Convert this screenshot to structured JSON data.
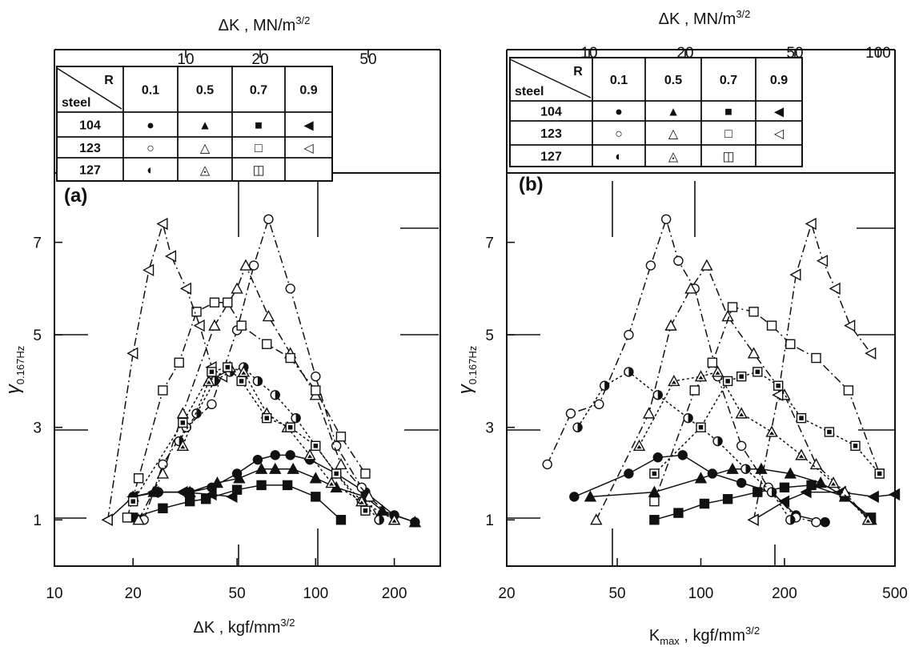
{
  "chart_data": [
    {
      "panel": "(a)",
      "type": "line",
      "xlabel": "ΔK , kgf/mm",
      "xlabel_sup": "3/2",
      "top_xlabel": "ΔK , MN/m",
      "top_xlabel_sup": "3/2",
      "ylabel": "γ",
      "ylabel_sub": "0.167Hz",
      "xscale": "log",
      "xlim": [
        10,
        300
      ],
      "ylim": [
        0,
        8.5
      ],
      "x_ticks": [
        "10",
        "20",
        "50",
        "100",
        "200"
      ],
      "x_tick_values": [
        10,
        20,
        50,
        100,
        200
      ],
      "top_ticks": [
        "10",
        "20",
        "50"
      ],
      "top_tick_values": [
        10,
        20,
        50
      ],
      "y_ticks": [
        "1",
        "3",
        "5",
        "7"
      ],
      "y_tick_values": [
        1,
        3,
        5,
        7
      ],
      "grid": "partial",
      "legend_table": {
        "corner_top": "R",
        "corner_bottom": "steel",
        "r_values": [
          "0.1",
          "0.5",
          "0.7",
          "0.9"
        ],
        "steels": [
          "104",
          "123",
          "127"
        ],
        "symbols": [
          [
            "●",
            "▲",
            "■",
            "◀"
          ],
          [
            "○",
            "△",
            "□",
            "◁"
          ],
          [
            "◐",
            "◬",
            "◫",
            ""
          ]
        ]
      },
      "series": [
        {
          "steel": "104",
          "R": "0.1",
          "marker": "circle",
          "fill": "solid",
          "dash": "solid",
          "x": [
            20,
            25,
            33,
            40,
            50,
            60,
            70,
            80,
            95,
            120,
            155,
            200,
            240
          ],
          "y": [
            1.5,
            1.6,
            1.6,
            1.7,
            2.0,
            2.3,
            2.4,
            2.4,
            2.3,
            2.0,
            1.6,
            1.1,
            0.95
          ]
        },
        {
          "steel": "104",
          "R": "0.5",
          "marker": "triangle",
          "fill": "solid",
          "dash": "solid",
          "x": [
            20,
            24,
            33,
            42,
            51,
            62,
            70,
            82,
            100,
            120,
            155,
            180,
            240
          ],
          "y": [
            1.5,
            1.6,
            1.6,
            1.8,
            1.9,
            2.1,
            2.1,
            2.1,
            1.9,
            1.7,
            1.5,
            1.2,
            0.95
          ]
        },
        {
          "steel": "104",
          "R": "0.7",
          "marker": "square",
          "fill": "solid",
          "dash": "solid",
          "x": [
            20,
            26,
            33,
            38,
            50,
            62,
            78,
            100,
            125
          ],
          "y": [
            1.05,
            1.25,
            1.4,
            1.45,
            1.65,
            1.75,
            1.75,
            1.5,
            1.0
          ]
        },
        {
          "steel": "104",
          "R": "0.9",
          "marker": "triangle-left",
          "fill": "solid",
          "dash": "solid",
          "x": [
            16,
            20,
            24,
            31,
            40,
            48
          ],
          "y": [
            1.0,
            1.5,
            1.6,
            1.6,
            1.55,
            1.5
          ]
        },
        {
          "steel": "123",
          "R": "0.1",
          "marker": "circle",
          "fill": "open",
          "dash": "dashdot",
          "x": [
            22,
            26,
            32,
            40,
            50,
            58,
            66,
            80,
            100,
            120,
            150,
            175
          ],
          "y": [
            1.0,
            2.2,
            3.0,
            3.5,
            5.1,
            6.5,
            7.5,
            6.0,
            4.1,
            2.6,
            1.7,
            1.0
          ]
        },
        {
          "steel": "123",
          "R": "0.5",
          "marker": "triangle",
          "fill": "open",
          "dash": "dashdot",
          "x": [
            21,
            26,
            31,
            41,
            50,
            54,
            66,
            80,
            100,
            125,
            160,
            200
          ],
          "y": [
            1.0,
            2.0,
            3.3,
            5.2,
            6.0,
            6.5,
            5.4,
            4.6,
            3.7,
            2.2,
            1.5,
            1.0
          ]
        },
        {
          "steel": "123",
          "R": "0.7",
          "marker": "square",
          "fill": "open",
          "dash": "dashdot",
          "x": [
            19,
            21,
            26,
            30,
            35,
            41,
            46,
            52,
            65,
            80,
            100,
            125,
            155
          ],
          "y": [
            1.05,
            1.9,
            3.8,
            4.4,
            5.5,
            5.7,
            5.7,
            5.2,
            4.8,
            4.5,
            3.8,
            2.8,
            2.0
          ]
        },
        {
          "steel": "123",
          "R": "0.9",
          "marker": "triangle-left",
          "fill": "open",
          "dash": "dashdot",
          "x": [
            16,
            20,
            23,
            26,
            28,
            32,
            36,
            40,
            44
          ],
          "y": [
            1.0,
            4.6,
            6.4,
            7.4,
            6.7,
            6.0,
            5.2,
            4.3,
            4.1
          ]
        },
        {
          "steel": "127",
          "R": "0.1",
          "marker": "half-circle",
          "fill": "half",
          "dash": "dotted",
          "x": [
            30,
            35,
            41,
            47,
            53,
            60,
            70,
            84,
            100,
            120,
            150,
            175
          ],
          "y": [
            2.7,
            3.3,
            4.0,
            4.2,
            4.3,
            4.0,
            3.7,
            3.2,
            2.6,
            2.0,
            1.4,
            1.0
          ]
        },
        {
          "steel": "127",
          "R": "0.5",
          "marker": "triangle",
          "fill": "half",
          "dash": "dotted",
          "x": [
            31,
            39,
            47,
            53,
            65,
            78,
            95,
            115,
            150,
            200
          ],
          "y": [
            2.6,
            4.0,
            4.3,
            4.2,
            3.3,
            3.0,
            2.4,
            1.8,
            1.4,
            1.0
          ]
        },
        {
          "steel": "127",
          "R": "0.7",
          "marker": "square",
          "fill": "half",
          "dash": "dotted",
          "x": [
            20,
            31,
            40,
            46,
            52,
            65,
            80,
            100,
            120,
            155
          ],
          "y": [
            1.4,
            3.1,
            4.2,
            4.3,
            4.0,
            3.2,
            3.0,
            2.6,
            2.0,
            1.2
          ]
        }
      ]
    },
    {
      "panel": "(b)",
      "type": "line",
      "xlabel": "K",
      "xlabel_sub": "max",
      "xlabel_rest": " , kgf/mm",
      "xlabel_sup": "3/2",
      "top_xlabel": "ΔK , MN/m",
      "top_xlabel_sup": "3/2",
      "ylabel": "γ",
      "ylabel_sub": "0.167Hz",
      "xscale": "log",
      "xlim": [
        20,
        500
      ],
      "ylim": [
        0,
        8.5
      ],
      "x_ticks": [
        "20",
        "50",
        "100",
        "200",
        "500"
      ],
      "x_tick_values": [
        20,
        50,
        100,
        200,
        500
      ],
      "top_ticks": [
        "10",
        "20",
        "50",
        "100"
      ],
      "top_tick_values": [
        10,
        20,
        50,
        100
      ],
      "y_ticks": [
        "1",
        "3",
        "5",
        "7"
      ],
      "y_tick_values": [
        1,
        3,
        5,
        7
      ],
      "grid": "partial",
      "legend_table": {
        "corner_top": "R",
        "corner_bottom": "steel",
        "r_values": [
          "0.1",
          "0.5",
          "0.7",
          "0.9"
        ],
        "steels": [
          "104",
          "123",
          "127"
        ],
        "symbols": [
          [
            "●",
            "▲",
            "■",
            "◀"
          ],
          [
            "○",
            "△",
            "□",
            "◁"
          ],
          [
            "◐",
            "◬",
            "◫",
            ""
          ]
        ]
      },
      "series": [
        {
          "steel": "104",
          "R": "0.1",
          "marker": "circle",
          "fill": "solid",
          "dash": "solid",
          "x": [
            35,
            55,
            70,
            86,
            110,
            140,
            180,
            220,
            280
          ],
          "y": [
            1.5,
            2.0,
            2.35,
            2.4,
            2.0,
            1.8,
            1.6,
            1.1,
            0.95
          ]
        },
        {
          "steel": "104",
          "R": "0.5",
          "marker": "triangle",
          "fill": "solid",
          "dash": "solid",
          "x": [
            40,
            68,
            100,
            130,
            165,
            210,
            270,
            330,
            410
          ],
          "y": [
            1.5,
            1.6,
            1.9,
            2.1,
            2.1,
            2.0,
            1.8,
            1.5,
            1.0
          ]
        },
        {
          "steel": "104",
          "R": "0.7",
          "marker": "square",
          "fill": "solid",
          "dash": "solid",
          "x": [
            68,
            83,
            103,
            125,
            160,
            200,
            250,
            330,
            410
          ],
          "y": [
            1.0,
            1.15,
            1.35,
            1.45,
            1.6,
            1.7,
            1.75,
            1.5,
            1.05
          ]
        },
        {
          "steel": "104",
          "R": "0.9",
          "marker": "triangle-left",
          "fill": "solid",
          "dash": "solid",
          "x": [
            155,
            200,
            240,
            320,
            420,
            500
          ],
          "y": [
            1.0,
            1.4,
            1.6,
            1.6,
            1.5,
            1.55
          ]
        },
        {
          "steel": "123",
          "R": "0.1",
          "marker": "circle",
          "fill": "open",
          "dash": "dashdot",
          "x": [
            28,
            34,
            43,
            55,
            66,
            75,
            83,
            95,
            115,
            140,
            175,
            220,
            260
          ],
          "y": [
            2.2,
            3.3,
            3.5,
            5.0,
            6.5,
            7.5,
            6.6,
            6.0,
            4.1,
            2.6,
            1.7,
            1.05,
            0.95
          ]
        },
        {
          "steel": "123",
          "R": "0.5",
          "marker": "triangle",
          "fill": "open",
          "dash": "dashdot",
          "x": [
            42,
            65,
            78,
            92,
            105,
            125,
            155,
            200,
            260,
            330,
            400
          ],
          "y": [
            1.0,
            3.3,
            5.2,
            6.0,
            6.5,
            5.4,
            4.6,
            3.7,
            2.2,
            1.6,
            1.0
          ]
        },
        {
          "steel": "123",
          "R": "0.7",
          "marker": "square",
          "fill": "open",
          "dash": "dashdot",
          "x": [
            68,
            95,
            110,
            130,
            155,
            180,
            210,
            260,
            340,
            440
          ],
          "y": [
            1.4,
            3.8,
            4.4,
            5.6,
            5.5,
            5.2,
            4.8,
            4.5,
            3.8,
            2.0
          ]
        },
        {
          "steel": "123",
          "R": "0.9",
          "marker": "triangle-left",
          "fill": "open",
          "dash": "dashdot",
          "x": [
            155,
            190,
            220,
            250,
            275,
            305,
            345,
            410
          ],
          "y": [
            1.0,
            3.7,
            6.3,
            7.4,
            6.6,
            6.0,
            5.2,
            4.6
          ]
        },
        {
          "steel": "127",
          "R": "0.1",
          "marker": "half-circle",
          "fill": "half",
          "dash": "dotted",
          "x": [
            36,
            45,
            55,
            70,
            90,
            115,
            145,
            180,
            210
          ],
          "y": [
            3.0,
            3.9,
            4.2,
            3.7,
            3.2,
            2.7,
            2.1,
            1.6,
            1.0
          ]
        },
        {
          "steel": "127",
          "R": "0.5",
          "marker": "triangle",
          "fill": "half",
          "dash": "dotted",
          "x": [
            60,
            80,
            100,
            115,
            140,
            180,
            230,
            300,
            400
          ],
          "y": [
            2.6,
            4.0,
            4.1,
            4.2,
            3.3,
            2.9,
            2.4,
            1.8,
            1.0
          ]
        },
        {
          "steel": "127",
          "R": "0.7",
          "marker": "square",
          "fill": "half",
          "dash": "dotted",
          "x": [
            68,
            100,
            125,
            140,
            160,
            190,
            230,
            290,
            360,
            440
          ],
          "y": [
            2.0,
            3.0,
            4.0,
            4.1,
            4.2,
            3.9,
            3.2,
            2.9,
            2.6,
            2.0
          ]
        }
      ]
    }
  ]
}
